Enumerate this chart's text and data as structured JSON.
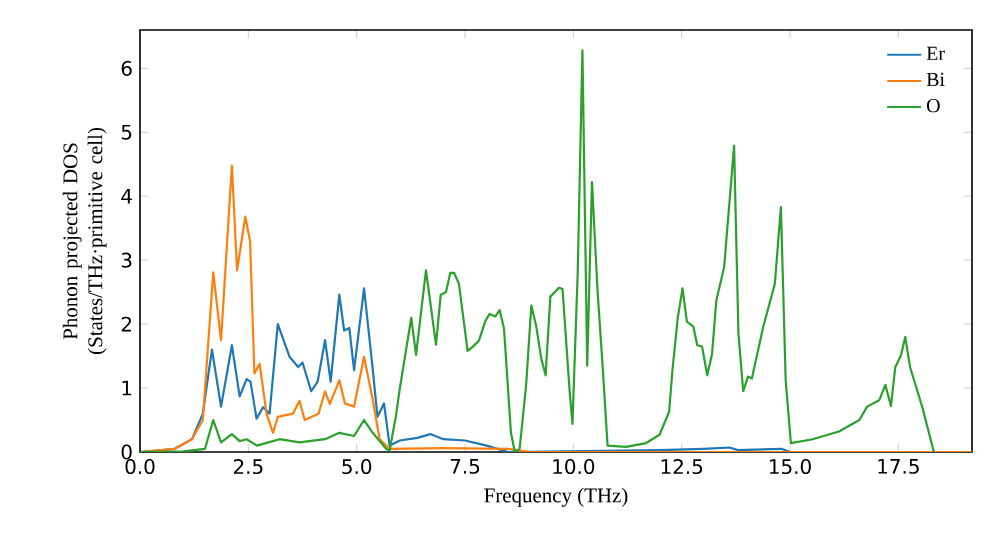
{
  "chart_data": {
    "type": "line",
    "xlabel": "Frequency (THz)",
    "ylabel": "Phonon projected DOS (States/THz·primitive cell)",
    "xlim": [
      0,
      19.2
    ],
    "ylim": [
      0,
      6.6
    ],
    "xticks": [
      {
        "value": 0,
        "label": "0.0"
      },
      {
        "value": 2.5,
        "label": "2.5"
      },
      {
        "value": 5,
        "label": "5.0"
      },
      {
        "value": 7.5,
        "label": "7.5"
      },
      {
        "value": 10,
        "label": "10.0"
      },
      {
        "value": 12.5,
        "label": "12.5"
      },
      {
        "value": 15,
        "label": "15.0"
      },
      {
        "value": 17.5,
        "label": "17.5"
      }
    ],
    "yticks": [
      0,
      1,
      2,
      3,
      4,
      5,
      6
    ],
    "legend": "top right",
    "series": [
      {
        "name": "Er",
        "color": "#1f77b4",
        "x": [
          0,
          0.8,
          1.2,
          1.45,
          1.66,
          1.87,
          2.12,
          2.3,
          2.46,
          2.55,
          2.69,
          2.84,
          2.99,
          3.18,
          3.45,
          3.65,
          3.75,
          3.95,
          4.1,
          4.27,
          4.4,
          4.6,
          4.71,
          4.83,
          4.94,
          5.17,
          5.37,
          5.48,
          5.63,
          5.76,
          6.0,
          6.4,
          6.7,
          7.0,
          7.5,
          8.0,
          8.5,
          12.0,
          13.0,
          13.6,
          13.8,
          14.8,
          15.0,
          19.2
        ],
        "values": [
          0,
          0.05,
          0.2,
          0.6,
          1.6,
          0.71,
          1.67,
          0.87,
          1.14,
          1.1,
          0.52,
          0.7,
          0.6,
          2.0,
          1.49,
          1.33,
          1.4,
          0.95,
          1.1,
          1.75,
          1.1,
          2.46,
          1.9,
          1.94,
          1.28,
          2.56,
          1.3,
          0.55,
          0.76,
          0.1,
          0.18,
          0.22,
          0.28,
          0.2,
          0.18,
          0.1,
          0.0,
          0.03,
          0.05,
          0.07,
          0.03,
          0.05,
          0.0,
          0.0
        ]
      },
      {
        "name": "Bi",
        "color": "#ff7f0e",
        "x": [
          0,
          0.8,
          1.2,
          1.45,
          1.69,
          1.87,
          2.12,
          2.24,
          2.43,
          2.54,
          2.64,
          2.76,
          2.92,
          3.07,
          3.18,
          3.53,
          3.68,
          3.8,
          4.12,
          4.27,
          4.38,
          4.6,
          4.73,
          4.94,
          5.17,
          5.37,
          5.53,
          5.76,
          7.0,
          8.5,
          9.0,
          19.2
        ],
        "values": [
          0,
          0.05,
          0.2,
          0.5,
          2.81,
          1.75,
          4.48,
          2.84,
          3.68,
          3.3,
          1.23,
          1.38,
          0.6,
          0.3,
          0.55,
          0.6,
          0.8,
          0.5,
          0.6,
          0.95,
          0.75,
          1.12,
          0.76,
          0.71,
          1.49,
          0.82,
          0.2,
          0.05,
          0.06,
          0.05,
          0.0,
          0.0
        ]
      },
      {
        "name": "O",
        "color": "#2ca02c",
        "x": [
          0,
          1.0,
          1.5,
          1.69,
          1.87,
          2.12,
          2.3,
          2.46,
          2.7,
          3.22,
          3.68,
          4.27,
          4.6,
          4.94,
          5.17,
          5.37,
          5.68,
          5.76,
          5.91,
          5.99,
          6.26,
          6.37,
          6.6,
          6.83,
          6.94,
          7.06,
          7.16,
          7.25,
          7.36,
          7.56,
          7.67,
          7.82,
          7.97,
          8.07,
          8.2,
          8.3,
          8.4,
          8.56,
          8.65,
          8.76,
          8.91,
          9.03,
          9.14,
          9.26,
          9.36,
          9.47,
          9.67,
          9.75,
          9.92,
          9.98,
          10.1,
          10.21,
          10.32,
          10.43,
          10.56,
          10.68,
          10.79,
          11.22,
          11.68,
          11.99,
          12.21,
          12.29,
          12.41,
          12.52,
          12.62,
          12.77,
          12.86,
          12.97,
          13.09,
          13.2,
          13.3,
          13.48,
          13.71,
          13.81,
          13.92,
          14.03,
          14.12,
          14.38,
          14.65,
          14.79,
          14.9,
          15.02,
          15.52,
          16.13,
          16.6,
          16.78,
          17.06,
          17.2,
          17.33,
          17.43,
          17.56,
          17.66,
          17.77,
          18.05,
          18.32
        ],
        "values": [
          0,
          0.01,
          0.05,
          0.5,
          0.15,
          0.28,
          0.17,
          0.2,
          0.1,
          0.2,
          0.15,
          0.2,
          0.3,
          0.25,
          0.5,
          0.3,
          0.05,
          0.02,
          0.58,
          0.97,
          2.1,
          1.52,
          2.84,
          1.68,
          2.46,
          2.5,
          2.8,
          2.8,
          2.63,
          1.58,
          1.64,
          1.74,
          2.05,
          2.16,
          2.12,
          2.22,
          1.93,
          0.3,
          0.0,
          0.05,
          1.04,
          2.29,
          1.98,
          1.46,
          1.2,
          2.43,
          2.57,
          2.55,
          0.9,
          0.44,
          2.79,
          6.28,
          1.35,
          4.22,
          2.51,
          1.3,
          0.1,
          0.08,
          0.14,
          0.27,
          0.63,
          1.3,
          2.1,
          2.56,
          2.04,
          1.96,
          1.67,
          1.65,
          1.2,
          1.53,
          2.37,
          2.89,
          4.79,
          1.85,
          0.95,
          1.18,
          1.15,
          1.95,
          2.63,
          3.83,
          1.12,
          0.14,
          0.2,
          0.32,
          0.5,
          0.71,
          0.81,
          1.05,
          0.72,
          1.33,
          1.51,
          1.8,
          1.33,
          0.71,
          0.0
        ]
      }
    ]
  }
}
